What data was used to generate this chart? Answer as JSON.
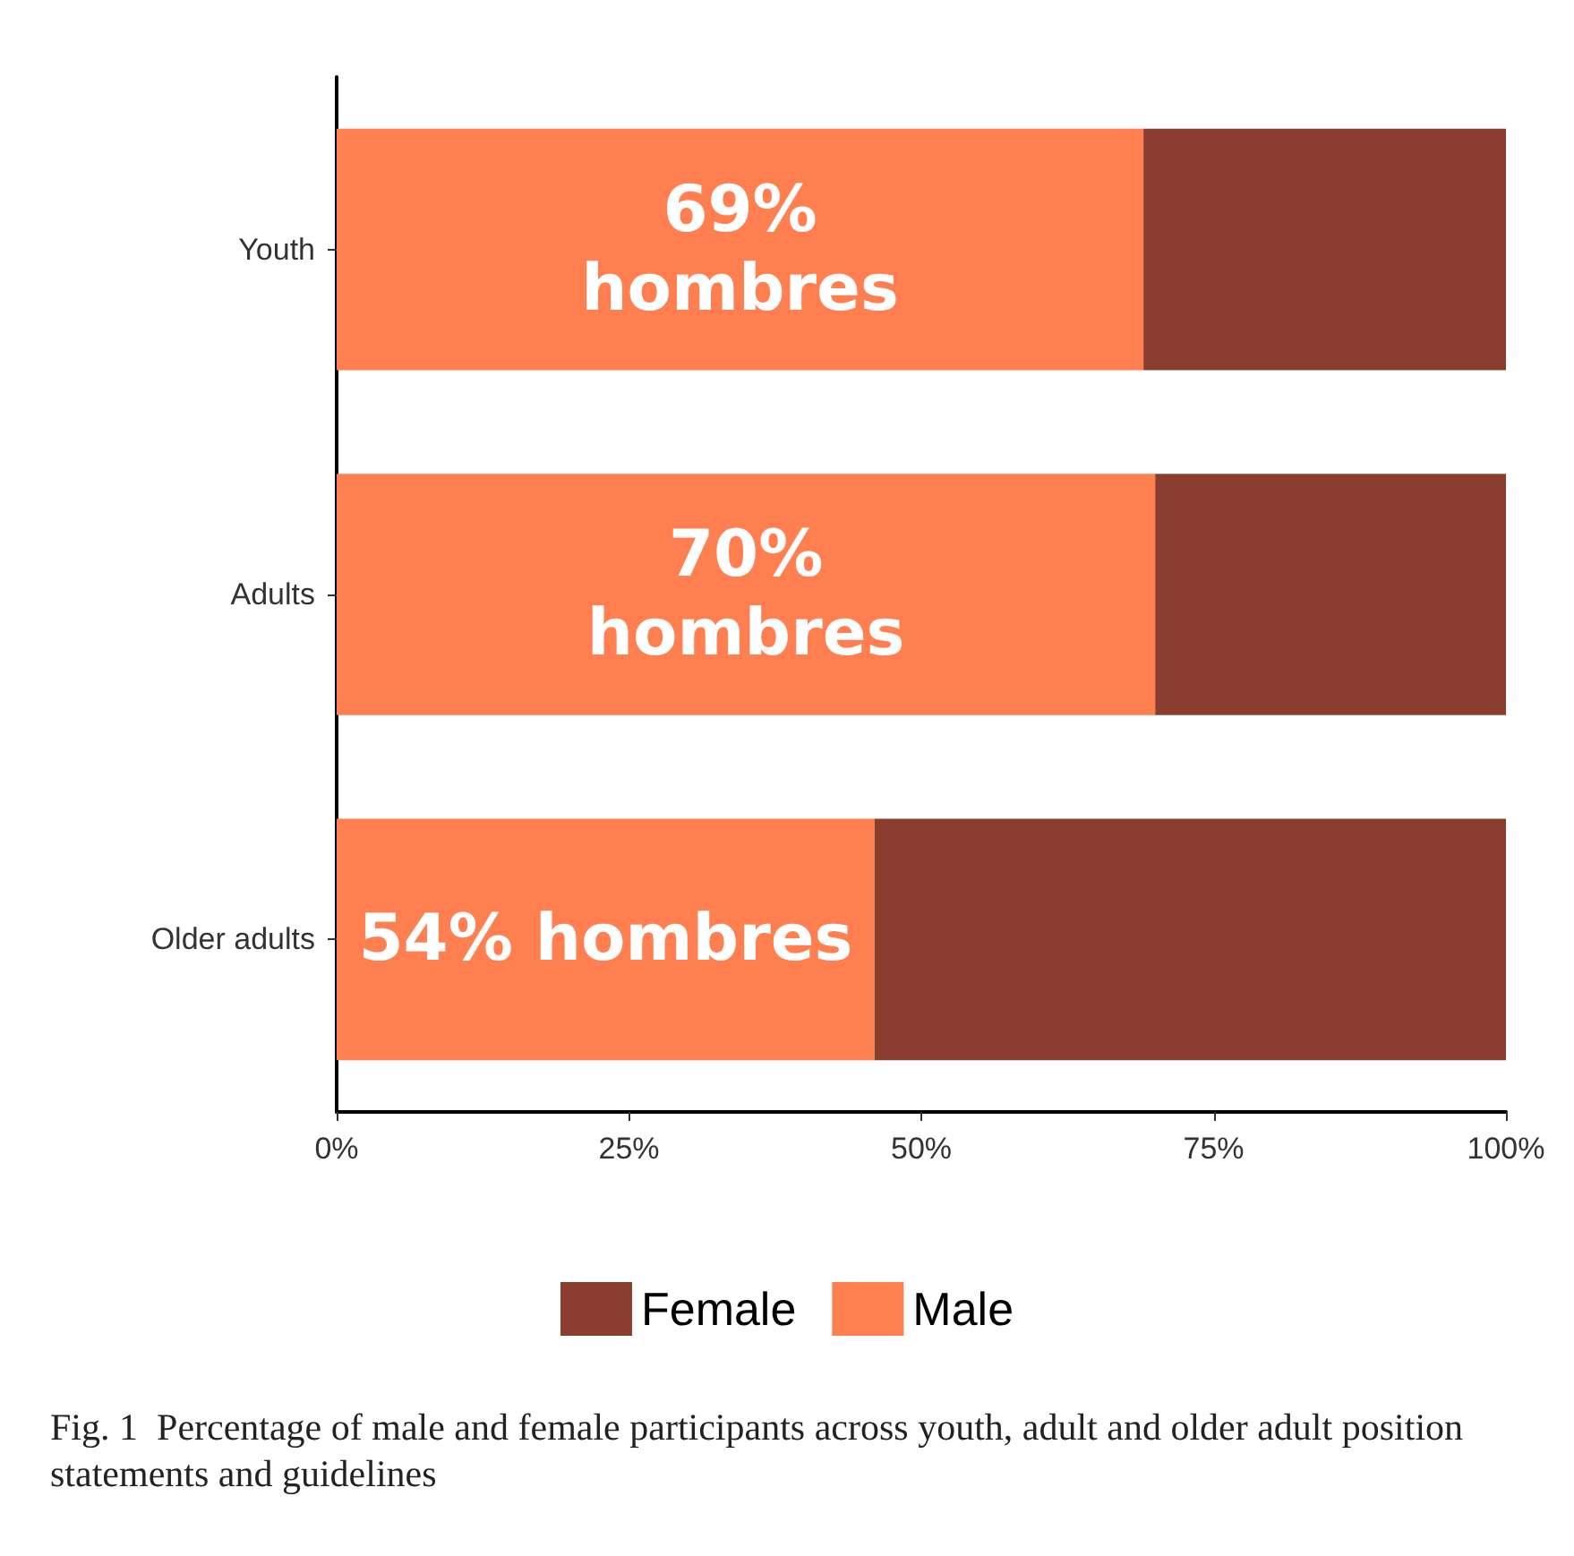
{
  "chart_data": {
    "type": "bar",
    "orientation": "horizontal",
    "stacked": true,
    "categories": [
      "Youth",
      "Adults",
      "Older adults"
    ],
    "series": [
      {
        "name": "Male",
        "color": "#ff7f50",
        "values": [
          69,
          70,
          46
        ]
      },
      {
        "name": "Female",
        "color": "#8b3e2f",
        "values": [
          31,
          30,
          54
        ]
      }
    ],
    "xlim": [
      0,
      100
    ],
    "xticks": [
      {
        "value": 0,
        "label": "0%"
      },
      {
        "value": 25,
        "label": "25%"
      },
      {
        "value": 50,
        "label": "50%"
      },
      {
        "value": 75,
        "label": "75%"
      },
      {
        "value": 100,
        "label": "100%"
      }
    ],
    "grid": false,
    "legend": "bottom",
    "annotations": [
      "69%\nhombres",
      "70%\nhombres",
      "54% hombres",
      "Fig. 1  Percentage of male and female participants across youth, adult and older adult position statements and guidelines"
    ]
  }
}
